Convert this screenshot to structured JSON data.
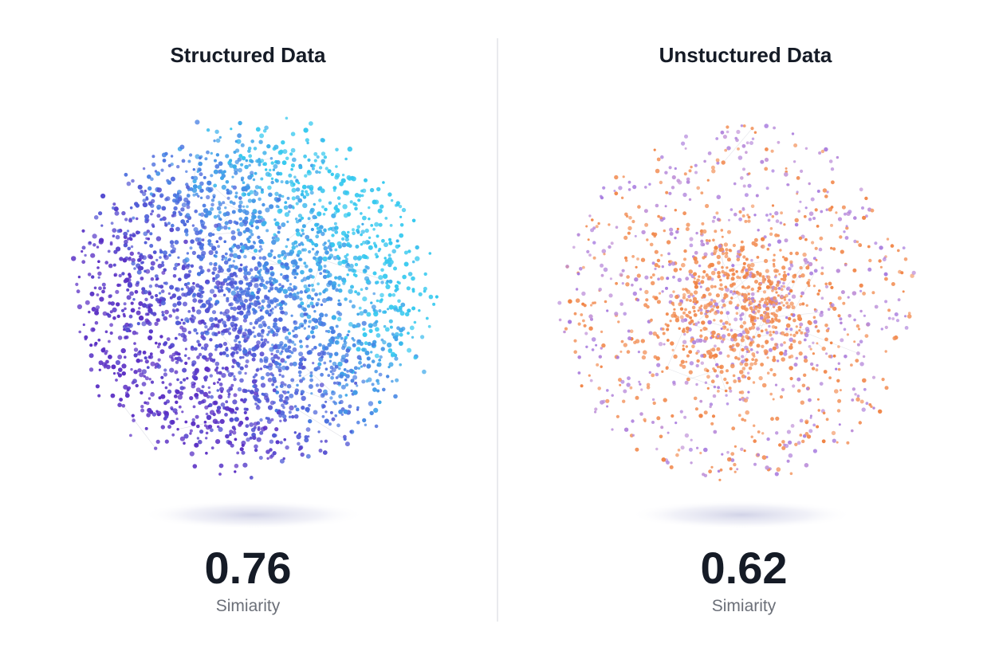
{
  "panels": [
    {
      "title": "Structured Data",
      "score": 0.76,
      "score_label": "Simiarity"
    },
    {
      "title": "Unstuctured Data",
      "score": 0.62,
      "score_label": "Simiarity"
    }
  ]
}
